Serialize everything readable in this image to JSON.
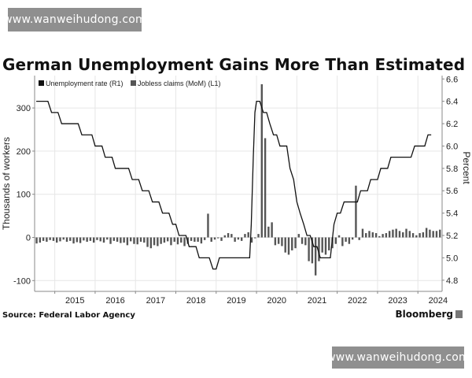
{
  "watermark": {
    "top_text": "www.wanweihudong.com",
    "bottom_text": "www.wanweihudong.com"
  },
  "header": {
    "title": "German Unemployment Gains More Than Estimated"
  },
  "footer": {
    "source": "Source: Federal Labor Agency",
    "brand": "Bloomberg"
  },
  "colors": {
    "unemployment_line": "#111111",
    "claims_bars": "#555555",
    "grid": "#e6e6e6",
    "axis": "#888888"
  },
  "chart_data": {
    "type": "bar",
    "title": "German Unemployment Gains More Than Estimated",
    "legend_position": "top-left",
    "grid": true,
    "x_ticks": [
      "2015",
      "2016",
      "2017",
      "2018",
      "2019",
      "2020",
      "2021",
      "2022",
      "2023",
      "2024"
    ],
    "x_range": [
      2014.5,
      2024.6
    ],
    "y_left": {
      "label": "Thousands of workers",
      "range": [
        -125,
        375
      ],
      "ticks": [
        -100,
        0,
        100,
        200,
        300
      ]
    },
    "y_right": {
      "label": "Percent",
      "range": [
        4.7,
        6.63
      ],
      "ticks": [
        4.8,
        5.0,
        5.2,
        5.4,
        5.6,
        5.8,
        6.0,
        6.2,
        6.4,
        6.6
      ]
    },
    "series": [
      {
        "name": "Unemployment rate (R1)",
        "type": "line",
        "axis": "right",
        "points": [
          [
            2014.54,
            6.4
          ],
          [
            2014.83,
            6.4
          ],
          [
            2014.92,
            6.3
          ],
          [
            2015.08,
            6.3
          ],
          [
            2015.17,
            6.2
          ],
          [
            2015.33,
            6.2
          ],
          [
            2015.42,
            6.2
          ],
          [
            2015.58,
            6.2
          ],
          [
            2015.67,
            6.1
          ],
          [
            2015.92,
            6.1
          ],
          [
            2016.0,
            6.0
          ],
          [
            2016.08,
            6.0
          ],
          [
            2016.17,
            6.0
          ],
          [
            2016.25,
            5.9
          ],
          [
            2016.42,
            5.9
          ],
          [
            2016.5,
            5.8
          ],
          [
            2016.67,
            5.8
          ],
          [
            2016.75,
            5.8
          ],
          [
            2016.83,
            5.8
          ],
          [
            2016.92,
            5.7
          ],
          [
            2017.08,
            5.7
          ],
          [
            2017.17,
            5.6
          ],
          [
            2017.25,
            5.6
          ],
          [
            2017.33,
            5.6
          ],
          [
            2017.42,
            5.5
          ],
          [
            2017.58,
            5.5
          ],
          [
            2017.67,
            5.4
          ],
          [
            2017.83,
            5.4
          ],
          [
            2017.92,
            5.3
          ],
          [
            2018.0,
            5.3
          ],
          [
            2018.08,
            5.2
          ],
          [
            2018.25,
            5.2
          ],
          [
            2018.33,
            5.1
          ],
          [
            2018.42,
            5.1
          ],
          [
            2018.5,
            5.1
          ],
          [
            2018.58,
            5.0
          ],
          [
            2018.67,
            5.0
          ],
          [
            2018.83,
            5.0
          ],
          [
            2018.92,
            4.9
          ],
          [
            2019.0,
            4.9
          ],
          [
            2019.08,
            5.0
          ],
          [
            2019.5,
            5.0
          ],
          [
            2019.58,
            5.0
          ],
          [
            2019.75,
            5.0
          ],
          [
            2019.83,
            5.0
          ],
          [
            2019.87,
            5.3
          ],
          [
            2019.92,
            5.9
          ],
          [
            2019.96,
            6.3
          ],
          [
            2020.0,
            6.4
          ],
          [
            2020.08,
            6.4
          ],
          [
            2020.17,
            6.3
          ],
          [
            2020.25,
            6.3
          ],
          [
            2020.33,
            6.2
          ],
          [
            2020.42,
            6.1
          ],
          [
            2020.5,
            6.1
          ],
          [
            2020.58,
            6.0
          ],
          [
            2020.67,
            6.0
          ],
          [
            2020.75,
            6.0
          ],
          [
            2020.83,
            5.8
          ],
          [
            2020.92,
            5.7
          ],
          [
            2021.0,
            5.5
          ],
          [
            2021.08,
            5.4
          ],
          [
            2021.17,
            5.3
          ],
          [
            2021.25,
            5.2
          ],
          [
            2021.33,
            5.2
          ],
          [
            2021.42,
            5.1
          ],
          [
            2021.5,
            5.1
          ],
          [
            2021.58,
            5.0
          ],
          [
            2021.75,
            5.0
          ],
          [
            2021.83,
            5.0
          ],
          [
            2021.92,
            5.3
          ],
          [
            2022.0,
            5.4
          ],
          [
            2022.08,
            5.4
          ],
          [
            2022.17,
            5.5
          ],
          [
            2022.5,
            5.5
          ],
          [
            2022.58,
            5.6
          ],
          [
            2022.75,
            5.6
          ],
          [
            2022.83,
            5.7
          ],
          [
            2023.0,
            5.7
          ],
          [
            2023.08,
            5.8
          ],
          [
            2023.25,
            5.8
          ],
          [
            2023.33,
            5.9
          ],
          [
            2023.83,
            5.9
          ],
          [
            2023.92,
            6.0
          ],
          [
            2024.0,
            6.0
          ],
          [
            2024.17,
            6.0
          ],
          [
            2024.25,
            6.1
          ],
          [
            2024.33,
            6.1
          ]
        ]
      },
      {
        "name": "Jobless claims (MoM) (L1)",
        "type": "bar",
        "axis": "left",
        "x_start": 2014.55,
        "x_step": 0.0833,
        "values": [
          -14,
          -12,
          -8,
          -10,
          -6,
          -8,
          -12,
          -9,
          -5,
          -10,
          -8,
          -14,
          -11,
          -13,
          -7,
          -10,
          -8,
          -12,
          -6,
          -9,
          -12,
          -5,
          -15,
          -8,
          -10,
          -13,
          -12,
          -18,
          -9,
          -15,
          -16,
          -10,
          -12,
          -22,
          -25,
          -18,
          -20,
          -15,
          -12,
          -9,
          -18,
          -10,
          -16,
          -12,
          -20,
          -15,
          -8,
          -10,
          -10,
          -14,
          -6,
          55,
          -10,
          -5,
          -2,
          -8,
          5,
          10,
          8,
          -10,
          -5,
          -8,
          8,
          12,
          -12,
          -2,
          8,
          355,
          230,
          25,
          35,
          -18,
          -15,
          -20,
          -35,
          -40,
          -30,
          -25,
          8,
          -15,
          -18,
          -55,
          -60,
          -88,
          -55,
          -35,
          -40,
          -30,
          -25,
          -15,
          5,
          -20,
          -10,
          -15,
          -5,
          120,
          -6,
          20,
          10,
          15,
          12,
          10,
          3,
          8,
          10,
          15,
          18,
          20,
          15,
          12,
          20,
          15,
          10,
          5,
          10,
          12,
          22,
          18,
          15,
          15,
          18
        ]
      }
    ]
  }
}
